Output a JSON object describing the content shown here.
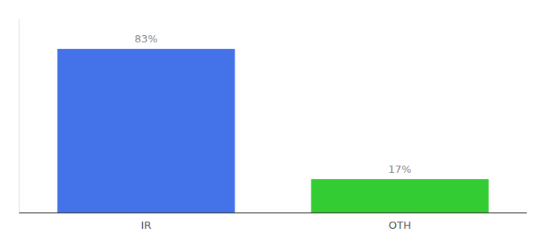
{
  "chart_data": {
    "type": "bar",
    "categories": [
      "IR",
      "OTH"
    ],
    "values": [
      83,
      17
    ],
    "value_labels": [
      "83%",
      "17%"
    ],
    "colors": [
      "#4472e8",
      "#33cc33"
    ],
    "ylim": [
      0,
      98
    ],
    "grid": false,
    "data_labels": true,
    "tick_labels": "x"
  }
}
